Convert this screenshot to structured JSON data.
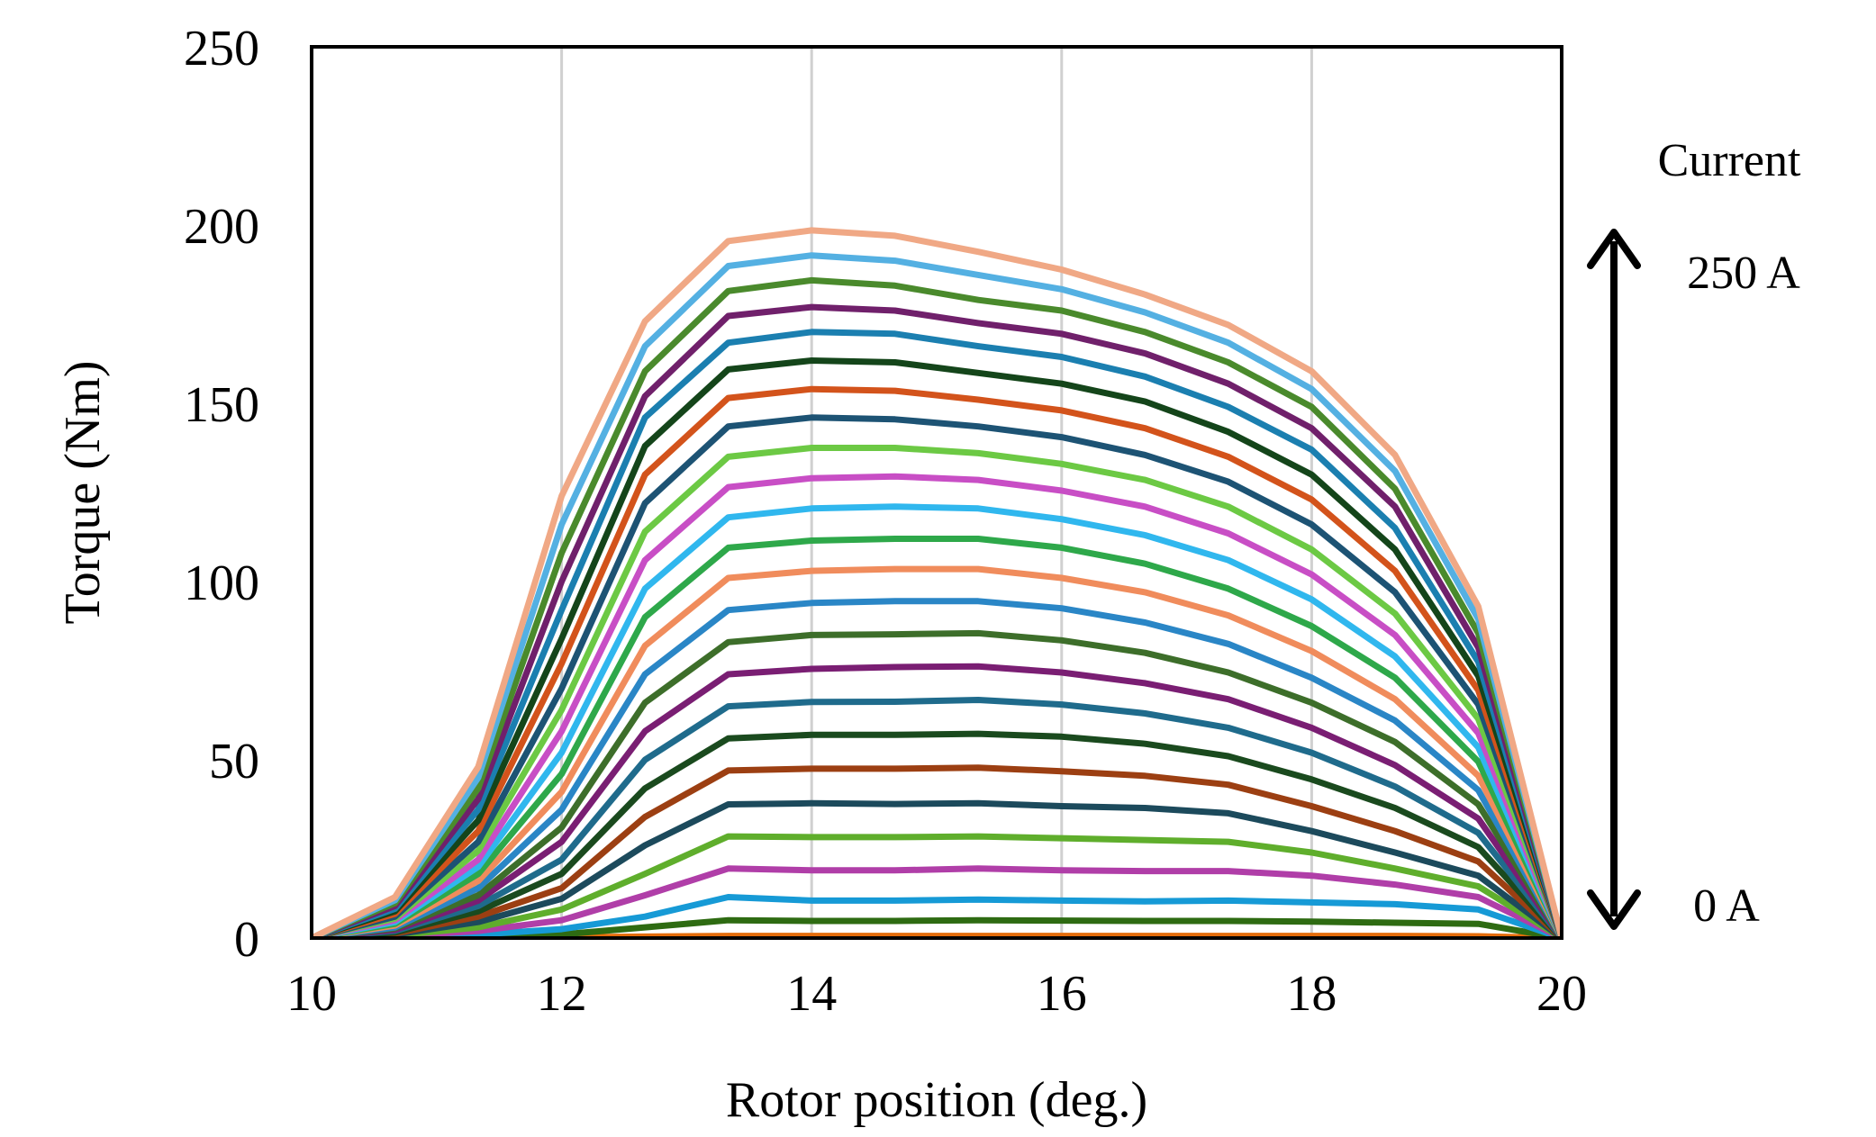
{
  "chart_data": {
    "type": "line",
    "title": "",
    "xlabel": "Rotor position (deg.)",
    "ylabel": "Torque (Nm)",
    "xlim": [
      10,
      20
    ],
    "ylim": [
      0,
      250
    ],
    "x_ticks": [
      "10",
      "12",
      "14",
      "16",
      "18",
      "20"
    ],
    "y_ticks": [
      "0",
      "50",
      "100",
      "150",
      "200",
      "250"
    ],
    "grid": "vertical",
    "legend": "none",
    "x": [
      10,
      10.667,
      11.333,
      12,
      12.667,
      13.333,
      14,
      14.667,
      15.333,
      16,
      16.667,
      17.333,
      18,
      18.667,
      19.333,
      20
    ],
    "series": [
      {
        "color": "#e46c0a",
        "values": [
          0,
          0.05,
          0.1,
          0.2,
          0.4,
          0.6,
          0.6,
          0.6,
          0.6,
          0.6,
          0.6,
          0.6,
          0.6,
          0.6,
          0.5,
          0
        ]
      },
      {
        "color": "#2e6b12",
        "values": [
          0,
          0.2,
          0.5,
          1,
          3,
          5,
          4.8,
          4.8,
          5,
          4.9,
          4.8,
          4.8,
          4.6,
          4.3,
          4,
          0
        ]
      },
      {
        "color": "#169ad6",
        "values": [
          0,
          0.3,
          1,
          2.5,
          6,
          11.5,
          10.5,
          10.5,
          10.8,
          10.5,
          10.3,
          10.5,
          10,
          9.5,
          8,
          0
        ]
      },
      {
        "color": "#b03ea8",
        "values": [
          0,
          0.5,
          2,
          5,
          12,
          19.5,
          19,
          19,
          19.5,
          19,
          18.8,
          18.8,
          17.5,
          15,
          11.5,
          0
        ]
      },
      {
        "color": "#5fae2c",
        "values": [
          0,
          0.7,
          3,
          8,
          18,
          28.5,
          28.3,
          28.3,
          28.5,
          28,
          27.5,
          27,
          24,
          19.5,
          14.5,
          0
        ]
      },
      {
        "color": "#1c4a5c",
        "values": [
          0,
          1,
          4.5,
          11,
          26,
          37.5,
          37.8,
          37.6,
          37.8,
          37,
          36.5,
          35,
          30,
          24,
          17.5,
          0
        ]
      },
      {
        "color": "#9c3f12",
        "values": [
          0,
          1.3,
          6,
          14,
          34,
          47,
          47.5,
          47.5,
          47.8,
          46.8,
          45.5,
          43,
          37,
          30,
          21.5,
          0
        ]
      },
      {
        "color": "#1a4a1e",
        "values": [
          0,
          1.6,
          7.5,
          18,
          42,
          56,
          57,
          57,
          57.3,
          56.5,
          54.5,
          51,
          44.5,
          36.5,
          25.5,
          0
        ]
      },
      {
        "color": "#1f6b8c",
        "values": [
          0,
          2,
          9,
          22,
          50,
          65,
          66.2,
          66.3,
          66.8,
          65.5,
          63,
          59,
          52,
          42.5,
          29.5,
          0
        ]
      },
      {
        "color": "#7a1e73",
        "values": [
          0,
          2.3,
          10.5,
          27,
          58,
          74,
          75.5,
          76,
          76.2,
          74.5,
          71.5,
          67,
          59,
          48.5,
          33.5,
          0
        ]
      },
      {
        "color": "#3d6e2a",
        "values": [
          0,
          2.7,
          12,
          31,
          66,
          83,
          85,
          85.2,
          85.5,
          83.5,
          80,
          74.5,
          66,
          55,
          37.5,
          0
        ]
      },
      {
        "color": "#2a86c6",
        "values": [
          0,
          3,
          14,
          36,
          74,
          92,
          94,
          94.5,
          94.5,
          92.5,
          88.5,
          82.5,
          73,
          61,
          41.5,
          0
        ]
      },
      {
        "color": "#f08c5c",
        "values": [
          0,
          3.5,
          16,
          41,
          82,
          101,
          103,
          103.5,
          103.5,
          101,
          97,
          90.5,
          80.5,
          67,
          45.5,
          0
        ]
      },
      {
        "color": "#2ea84a",
        "values": [
          0,
          4,
          18,
          46,
          90,
          109.5,
          111.5,
          112,
          112,
          109.5,
          105,
          98,
          87.5,
          73,
          49.5,
          0
        ]
      },
      {
        "color": "#30b7ee",
        "values": [
          0,
          4.5,
          20,
          52,
          98,
          118,
          120.5,
          121,
          120.5,
          117.5,
          113,
          106,
          95,
          79,
          53.5,
          0
        ]
      },
      {
        "color": "#c84ec5",
        "values": [
          0,
          5,
          22,
          58,
          106,
          126.5,
          129,
          129.5,
          128.5,
          125.5,
          121,
          113.5,
          102,
          85,
          57.5,
          0
        ]
      },
      {
        "color": "#6cc944",
        "values": [
          0,
          5.5,
          24.5,
          64,
          114,
          135,
          137.5,
          137.5,
          136,
          133,
          128.5,
          121,
          109,
          91,
          61.5,
          0
        ]
      },
      {
        "color": "#1d5374",
        "values": [
          0,
          6,
          27,
          70,
          122,
          143.5,
          146,
          145.5,
          143.5,
          140.5,
          135.5,
          128,
          116,
          97,
          65.5,
          0
        ]
      },
      {
        "color": "#d3531b",
        "values": [
          0,
          6.8,
          30,
          77,
          130,
          151.5,
          154,
          153.5,
          151,
          148,
          143,
          135,
          123,
          103,
          69.5,
          0
        ]
      },
      {
        "color": "#14451a",
        "values": [
          0,
          7.5,
          33,
          84,
          138,
          159.5,
          162,
          161.5,
          158.5,
          155.5,
          150.5,
          142,
          130,
          109,
          73.5,
          0
        ]
      },
      {
        "color": "#1b7fb0",
        "values": [
          0,
          8.2,
          36,
          92,
          146,
          167,
          170,
          169.5,
          166,
          163,
          157.5,
          149,
          137,
          115,
          77.5,
          0
        ]
      },
      {
        "color": "#70206b",
        "values": [
          0,
          9,
          39,
          100,
          152,
          174.5,
          177,
          176,
          172.5,
          169.5,
          164,
          155.5,
          143,
          121,
          81.5,
          0
        ]
      },
      {
        "color": "#4a8a2c",
        "values": [
          0,
          9.8,
          42,
          108,
          159,
          181.5,
          184.5,
          183,
          179,
          176,
          170,
          161.5,
          149,
          126,
          85.5,
          0
        ]
      },
      {
        "color": "#54b0e2",
        "values": [
          0,
          10.6,
          45,
          116,
          166,
          188.5,
          191.5,
          190,
          186,
          182,
          175.5,
          167,
          154,
          131,
          89.5,
          0
        ]
      },
      {
        "color": "#f0a885",
        "values": [
          0,
          11.5,
          48,
          124,
          173,
          195.5,
          198.5,
          197,
          192.5,
          187.5,
          180.5,
          172,
          159,
          135.5,
          93,
          0
        ]
      }
    ],
    "annotations": {
      "legend_title": "Current",
      "top_label": "250 A",
      "bottom_label": "0 A"
    }
  }
}
